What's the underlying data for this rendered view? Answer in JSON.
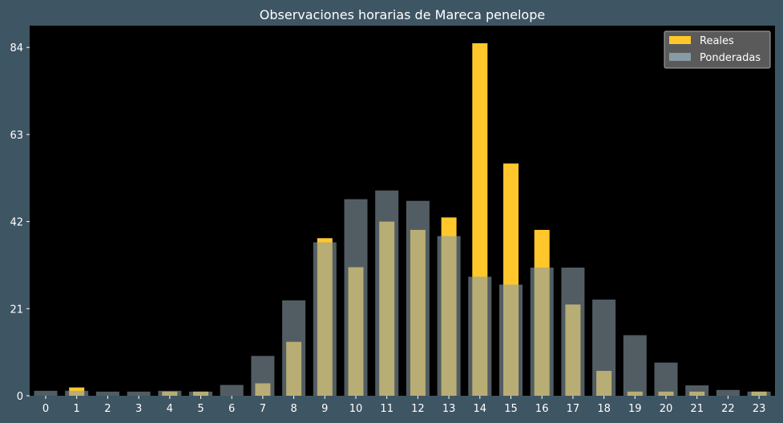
{
  "chart_data": {
    "type": "bar",
    "title": "Observaciones horarias de Mareca penelope",
    "xlabel": "",
    "ylabel": "",
    "categories": [
      "0",
      "1",
      "2",
      "3",
      "4",
      "5",
      "6",
      "7",
      "8",
      "9",
      "10",
      "11",
      "12",
      "13",
      "14",
      "15",
      "16",
      "17",
      "18",
      "19",
      "20",
      "21",
      "22",
      "23"
    ],
    "series": [
      {
        "name": "Reales",
        "color": "#ffc72c",
        "values": [
          0,
          2,
          0,
          0,
          1,
          1,
          0,
          3,
          13,
          38,
          31,
          42,
          40,
          43,
          85,
          56,
          40,
          22,
          6,
          1,
          1,
          1,
          0,
          1
        ]
      },
      {
        "name": "Ponderadas",
        "color": "#889ba5",
        "values": [
          1.2,
          1.2,
          1,
          1,
          1.2,
          1,
          2.6,
          9.6,
          23,
          37,
          47.4,
          49.5,
          47,
          38.5,
          28.7,
          26.8,
          30.9,
          30.9,
          23.2,
          14.6,
          8,
          2.5,
          1.4,
          1
        ]
      }
    ],
    "ylim": [
      0,
      89.25
    ],
    "yticks": [
      0,
      21,
      42,
      63,
      84
    ],
    "grid": false,
    "legend_position": "top-right",
    "background": "#000000",
    "figure_background": "#3e5563",
    "text_color": "#ffffff"
  }
}
